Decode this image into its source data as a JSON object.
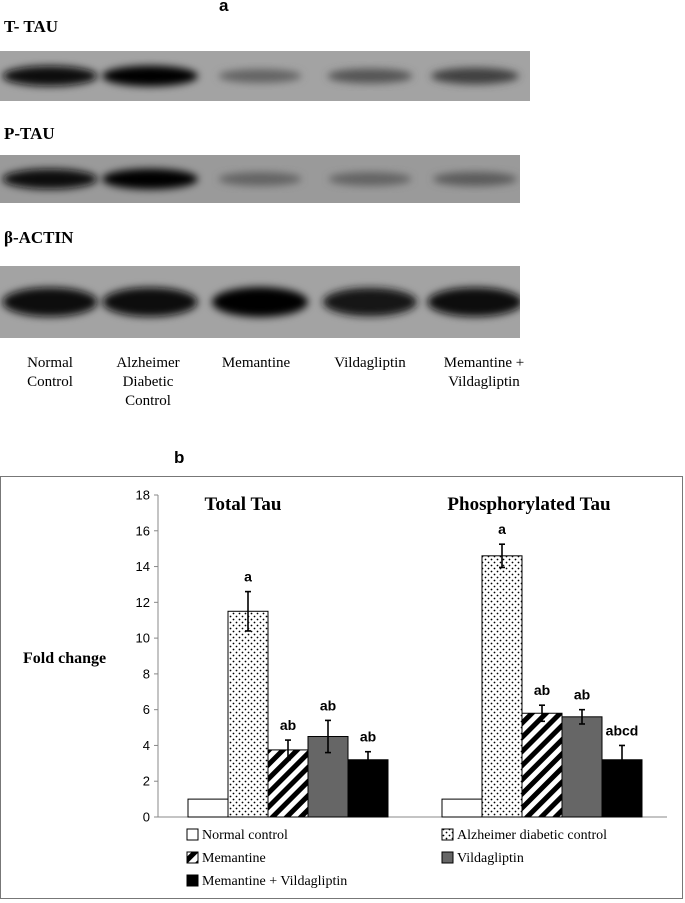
{
  "panel_a": {
    "label": "a",
    "blots": [
      {
        "name": "T- TAU",
        "intensities": [
          0.95,
          1.0,
          0.35,
          0.45,
          0.6
        ]
      },
      {
        "name": "P-TAU",
        "intensities": [
          0.95,
          1.0,
          0.35,
          0.35,
          0.4
        ]
      },
      {
        "name": "β-ACTIN",
        "intensities": [
          0.95,
          0.95,
          1.0,
          0.9,
          0.95
        ]
      }
    ],
    "lanes": [
      [
        "Normal",
        "Control"
      ],
      [
        "Alzheimer",
        "Diabetic",
        "Control"
      ],
      [
        "Memantine"
      ],
      [
        "Vildagliptin"
      ],
      [
        "Memantine +",
        "Vildagliptin"
      ]
    ]
  },
  "panel_b": {
    "label": "b"
  },
  "chart_data": {
    "type": "bar",
    "ylabel": "Fold change",
    "ylim": [
      0,
      18
    ],
    "yticks": [
      0,
      2,
      4,
      6,
      8,
      10,
      12,
      14,
      16,
      18
    ],
    "grid": false,
    "legend_position": "bottom",
    "groups": [
      {
        "title": "Total Tau",
        "values": [
          1,
          11.5,
          3.75,
          4.5,
          3.2
        ],
        "errors": [
          0,
          1.1,
          0.55,
          0.9,
          0.45
        ],
        "annotations": [
          "",
          "a",
          "ab",
          "ab",
          "ab"
        ]
      },
      {
        "title": "Phosphorylated Tau",
        "values": [
          1,
          14.6,
          5.8,
          5.6,
          3.2
        ],
        "errors": [
          0,
          0.65,
          0.45,
          0.4,
          0.8
        ],
        "annotations": [
          "",
          "a",
          "ab",
          "ab",
          "abcd"
        ]
      }
    ],
    "series": [
      {
        "name": "Normal control",
        "pattern": "white"
      },
      {
        "name": "Alzheimer diabetic control",
        "pattern": "dots"
      },
      {
        "name": "Memantine",
        "pattern": "hatch"
      },
      {
        "name": "Vildagliptin",
        "pattern": "gray",
        "color": "#666666"
      },
      {
        "name": "Memantine + Vildagliptin",
        "pattern": "black",
        "color": "#000000"
      }
    ]
  }
}
